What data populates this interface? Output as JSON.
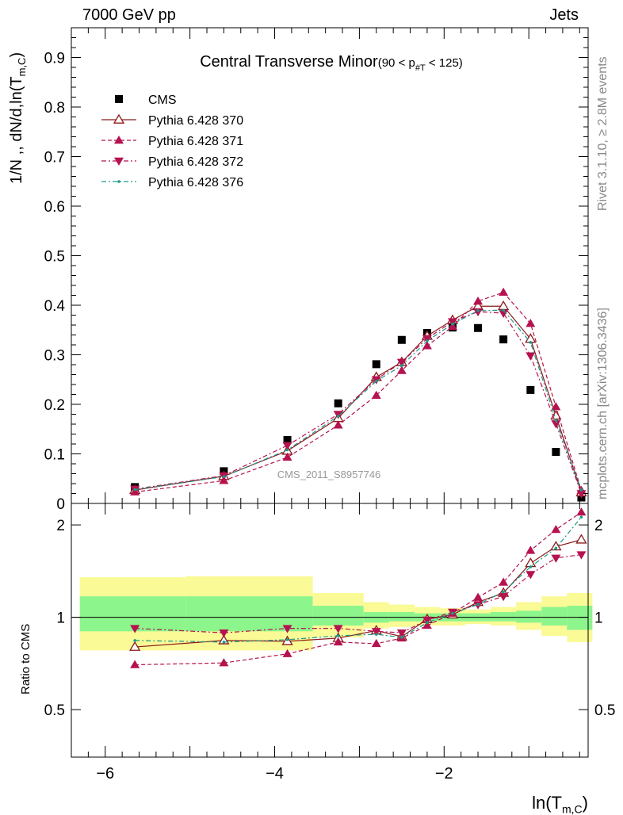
{
  "header": {
    "left": "7000 GeV pp",
    "right": "Jets"
  },
  "side_text": {
    "rivet": "Rivet 3.1.10, ≥ 2.8M events",
    "mcplots": "mcplots.cern.ch [arXiv:1306.3436]"
  },
  "labels": {
    "ylabel_main_pre": "1/N ,, dN/d,ln(T",
    "ylabel_main_sub": "m,C",
    "ylabel_main_post": ")",
    "ylabel_ratio": "Ratio to CMS",
    "xlabel_pre": "ln(T",
    "xlabel_sub": "m,C",
    "xlabel_post": ")",
    "watermark": "CMS_2011_S8957746",
    "title_main": "Central Transverse Minor",
    "title_range_pre": "(90 < p",
    "title_range_sub": "#T",
    "title_range_post": " < 125)"
  },
  "colors": {
    "cms": "#000000",
    "p370": "#8b1a1a",
    "p371": "#b5124f",
    "p372": "#b5124f",
    "p376": "#1a9a8a",
    "band_inner": "#8cf58c",
    "band_outer": "#fafa96"
  },
  "chart_data": [
    {
      "type": "scatter",
      "panel": "main",
      "xlim": [
        -6.4,
        -0.3
      ],
      "ylim": [
        0,
        0.96
      ],
      "yticks": [
        0,
        0.1,
        0.2,
        0.3,
        0.4,
        0.5,
        0.6,
        0.7,
        0.8,
        0.9
      ],
      "ytick_labels": [
        "0",
        "0.1",
        "0.2",
        "0.3",
        "0.4",
        "0.5",
        "0.6",
        "0.7",
        "0.8",
        "0.9"
      ],
      "x": [
        -5.65,
        -4.6,
        -3.85,
        -3.25,
        -2.8,
        -2.5,
        -2.2,
        -1.9,
        -1.6,
        -1.3,
        -0.98,
        -0.68,
        -0.38
      ],
      "legend_placement": "top-left",
      "series": [
        {
          "name": "CMS",
          "style": "square",
          "values": [
            0.033,
            0.065,
            0.128,
            0.202,
            0.281,
            0.33,
            0.344,
            0.355,
            0.354,
            0.331,
            0.229,
            0.104,
            0.012
          ]
        },
        {
          "name": "Pythia 6.428 370",
          "style": "open-triangle-up",
          "dash": "",
          "values": [
            0.027,
            0.055,
            0.106,
            0.172,
            0.255,
            0.285,
            0.338,
            0.37,
            0.398,
            0.398,
            0.332,
            0.177,
            0.022
          ]
        },
        {
          "name": "Pythia 6.428 371",
          "style": "triangle-up",
          "dash": "5,3",
          "values": [
            0.023,
            0.046,
            0.093,
            0.158,
            0.218,
            0.268,
            0.318,
            0.357,
            0.408,
            0.426,
            0.363,
            0.195,
            0.026
          ]
        },
        {
          "name": "Pythia 6.428 372",
          "style": "triangle-down",
          "dash": "6,3,2,3",
          "values": [
            0.029,
            0.056,
            0.117,
            0.18,
            0.25,
            0.285,
            0.333,
            0.367,
            0.387,
            0.384,
            0.298,
            0.161,
            0.02
          ]
        },
        {
          "name": "Pythia 6.428 376",
          "style": "dot",
          "dash": "6,3,2,3",
          "values": [
            0.028,
            0.054,
            0.108,
            0.176,
            0.247,
            0.278,
            0.328,
            0.362,
            0.389,
            0.39,
            0.325,
            0.168,
            0.027
          ]
        }
      ]
    },
    {
      "type": "line",
      "panel": "ratio",
      "xlim": [
        -6.4,
        -0.3
      ],
      "ylim": [
        0.35,
        2.35
      ],
      "yticks": [
        0.5,
        1,
        2
      ],
      "ytick_labels": [
        "0.5",
        "1",
        "2"
      ],
      "xticks": [
        -6,
        -4,
        -2
      ],
      "xtick_labels": [
        "−6",
        "−4",
        "−2"
      ],
      "x": [
        -5.65,
        -4.6,
        -3.85,
        -3.25,
        -2.8,
        -2.5,
        -2.2,
        -1.9,
        -1.6,
        -1.3,
        -0.98,
        -0.68,
        -0.38
      ],
      "bands": {
        "edges": [
          -6.3,
          -5.05,
          -4.15,
          -3.55,
          -2.95,
          -2.65,
          -2.35,
          -2.05,
          -1.75,
          -1.45,
          -1.15,
          -0.85,
          -0.55,
          -0.25
        ],
        "inner": [
          [
            0.9,
            1.17
          ],
          [
            0.9,
            1.17
          ],
          [
            0.9,
            1.17
          ],
          [
            0.94,
            1.09
          ],
          [
            0.96,
            1.04
          ],
          [
            0.97,
            1.04
          ],
          [
            0.97,
            1.03
          ],
          [
            0.97,
            1.03
          ],
          [
            0.97,
            1.03
          ],
          [
            0.97,
            1.04
          ],
          [
            0.96,
            1.05
          ],
          [
            0.94,
            1.08
          ],
          [
            0.91,
            1.09
          ]
        ],
        "outer": [
          [
            0.78,
            1.35
          ],
          [
            0.78,
            1.36
          ],
          [
            0.78,
            1.36
          ],
          [
            0.86,
            1.2
          ],
          [
            0.92,
            1.12
          ],
          [
            0.93,
            1.1
          ],
          [
            0.94,
            1.08
          ],
          [
            0.94,
            1.07
          ],
          [
            0.95,
            1.06
          ],
          [
            0.94,
            1.08
          ],
          [
            0.91,
            1.12
          ],
          [
            0.87,
            1.17
          ],
          [
            0.83,
            1.2
          ]
        ]
      },
      "series": [
        {
          "name": "Pythia 6.428 370",
          "values": [
            0.8,
            0.84,
            0.835,
            0.855,
            0.905,
            0.865,
            0.985,
            1.02,
            1.12,
            1.2,
            1.5,
            1.7,
            1.79
          ]
        },
        {
          "name": "Pythia 6.428 371",
          "values": [
            0.7,
            0.71,
            0.76,
            0.83,
            0.82,
            0.855,
            0.94,
            1.03,
            1.16,
            1.3,
            1.65,
            1.93,
            2.2
          ]
        },
        {
          "name": "Pythia 6.428 372",
          "values": [
            0.92,
            0.89,
            0.92,
            0.92,
            0.9,
            0.89,
            0.98,
            1.04,
            1.1,
            1.17,
            1.38,
            1.56,
            1.6
          ]
        },
        {
          "name": "Pythia 6.428 376",
          "values": [
            0.84,
            0.83,
            0.845,
            0.87,
            0.88,
            0.86,
            0.96,
            1.03,
            1.1,
            1.21,
            1.46,
            1.68,
            2.12
          ]
        }
      ]
    }
  ]
}
